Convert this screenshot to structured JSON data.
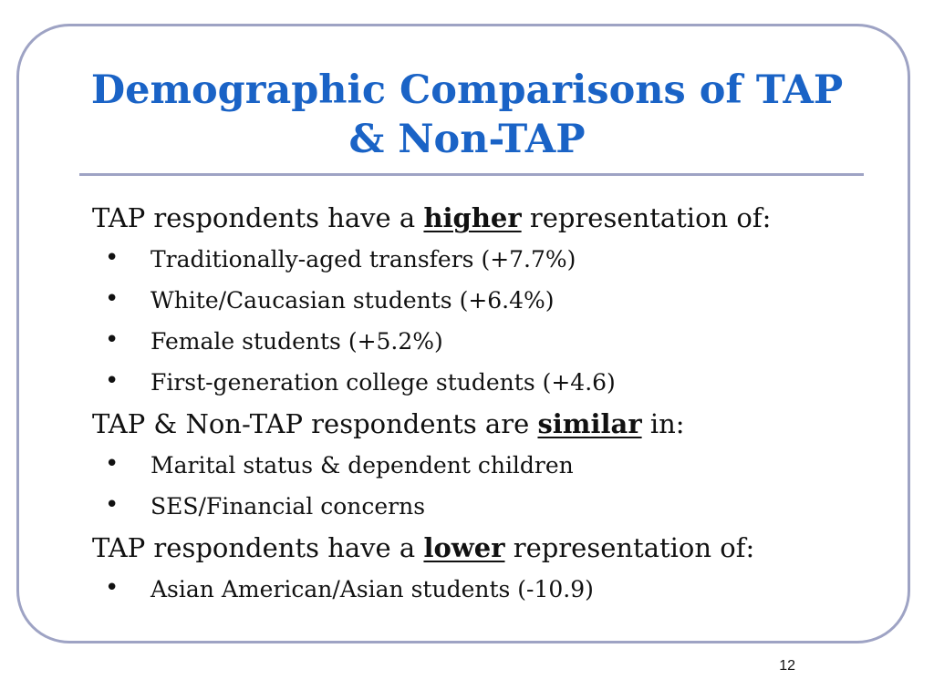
{
  "title": {
    "line1": "Demographic Comparisons of TAP",
    "line2": "& Non-TAP"
  },
  "sections": [
    {
      "prefix": "TAP respondents have a ",
      "keyword": "higher",
      "suffix": " representation of:",
      "items": [
        "Traditionally-aged transfers (+7.7%)",
        "White/Caucasian students (+6.4%)",
        "Female students (+5.2%)",
        "First-generation college students (+4.6)"
      ]
    },
    {
      "prefix": "TAP & Non-TAP respondents are ",
      "keyword": "similar",
      "suffix": " in:",
      "items": [
        "Marital status & dependent children",
        "SES/Financial concerns"
      ]
    },
    {
      "prefix": "TAP respondents have a ",
      "keyword": "lower",
      "suffix": " representation of:",
      "items": [
        "Asian American/Asian students (-10.9)"
      ]
    }
  ],
  "bullet_glyph": "•",
  "page_number": "12",
  "colors": {
    "title": "#1a63c6",
    "frame": "#9ea3c4",
    "text": "#111111"
  }
}
